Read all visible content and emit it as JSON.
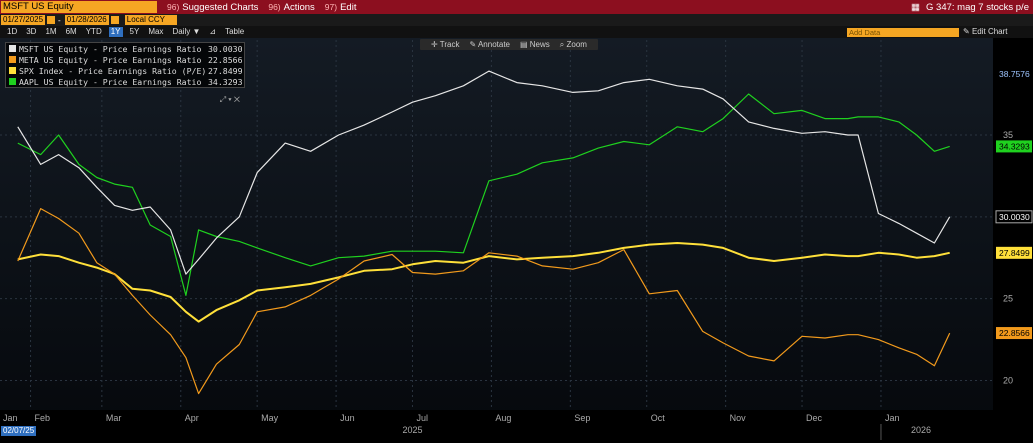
{
  "topbar": {
    "ticker": "MSFT US Equity",
    "menu": [
      {
        "num": "96)",
        "label": "Suggested Charts"
      },
      {
        "num": "96)",
        "label": "Actions"
      },
      {
        "num": "97)",
        "label": "Edit"
      }
    ],
    "right_label": "G 347: mag 7 stocks p/e"
  },
  "date_range": {
    "start": "01/27/2025",
    "end": "01/28/2026",
    "currency": "Local CCY"
  },
  "periods": [
    "1D",
    "3D",
    "1M",
    "6M",
    "YTD",
    "1Y",
    "5Y",
    "Max",
    "Daily ▼",
    "Table"
  ],
  "active_period": "1Y",
  "add_data_placeholder": "Add Data",
  "edit_chart_label": "Edit Chart",
  "tools": [
    "Track",
    "Annotate",
    "News",
    "Zoom"
  ],
  "cursor_date": "02/07/25",
  "colors": {
    "msft": "#e6e6e6",
    "meta": "#f29a1c",
    "spx": "#ffe03a",
    "aapl": "#1fd11f"
  },
  "chart_data": {
    "type": "line",
    "title": "",
    "xlabel": "",
    "ylabel": "",
    "ylim": [
      18.2,
      40.8
    ],
    "y_ticks": [
      20,
      25,
      30,
      35
    ],
    "x_ticks": [
      "Jan",
      "Feb",
      "Mar",
      "Apr",
      "May",
      "Jun",
      "Jul",
      "Aug",
      "Sep",
      "Oct",
      "Nov",
      "Dec",
      "Jan"
    ],
    "x_year_labels": [
      "2025",
      "2026"
    ],
    "x": [
      "2025-01-27",
      "2025-02-05",
      "2025-02-12",
      "2025-02-20",
      "2025-02-27",
      "2025-03-06",
      "2025-03-13",
      "2025-03-20",
      "2025-03-28",
      "2025-04-03",
      "2025-04-08",
      "2025-04-15",
      "2025-04-24",
      "2025-05-01",
      "2025-05-12",
      "2025-05-22",
      "2025-06-02",
      "2025-06-12",
      "2025-06-23",
      "2025-07-01",
      "2025-07-10",
      "2025-07-21",
      "2025-07-31",
      "2025-08-11",
      "2025-08-21",
      "2025-09-02",
      "2025-09-12",
      "2025-09-22",
      "2025-10-02",
      "2025-10-13",
      "2025-10-23",
      "2025-10-31",
      "2025-11-10",
      "2025-11-20",
      "2025-12-01",
      "2025-12-10",
      "2025-12-19",
      "2025-12-23",
      "2025-12-31",
      "2026-01-08",
      "2026-01-15",
      "2026-01-22",
      "2026-01-28"
    ],
    "series": [
      {
        "name": "MSFT US Equity - Price Earnings Ratio (P/E)",
        "key": "msft",
        "last": "30.0030",
        "values": [
          35.5,
          33.2,
          33.8,
          33.0,
          31.8,
          30.7,
          30.4,
          30.6,
          29.2,
          26.5,
          27.4,
          28.7,
          30.0,
          32.7,
          34.5,
          34.0,
          35.0,
          35.6,
          36.4,
          37.0,
          37.4,
          38.0,
          38.9,
          38.2,
          38.0,
          37.6,
          37.7,
          38.2,
          38.4,
          38.0,
          37.8,
          37.2,
          35.8,
          35.4,
          35.1,
          35.2,
          35.0,
          35.0,
          30.2,
          29.6,
          29.0,
          28.4,
          30.0
        ]
      },
      {
        "name": "META US Equity - Price Earnings Ratio (P/E)",
        "key": "meta",
        "last": "22.8566",
        "values": [
          27.3,
          30.5,
          29.9,
          29.0,
          27.2,
          26.5,
          25.2,
          24.0,
          22.8,
          21.4,
          19.2,
          21.0,
          22.2,
          24.2,
          24.5,
          25.2,
          26.2,
          27.3,
          27.7,
          26.6,
          26.5,
          26.7,
          27.8,
          27.6,
          27.0,
          26.8,
          27.2,
          28.0,
          25.3,
          25.5,
          23.0,
          22.3,
          21.5,
          21.2,
          22.7,
          22.6,
          22.8,
          22.8,
          22.5,
          22.0,
          21.6,
          20.9,
          22.9
        ]
      },
      {
        "name": "SPX Index - Price Earnings Ratio (P/E)",
        "key": "spx",
        "last": "27.8499",
        "values": [
          27.4,
          27.7,
          27.6,
          27.2,
          26.9,
          26.5,
          25.6,
          25.5,
          25.1,
          24.2,
          23.6,
          24.3,
          24.9,
          25.5,
          25.7,
          25.9,
          26.3,
          26.7,
          26.8,
          27.1,
          27.3,
          27.2,
          27.6,
          27.4,
          27.5,
          27.6,
          27.8,
          28.1,
          28.3,
          28.4,
          28.3,
          28.1,
          27.5,
          27.3,
          27.5,
          27.7,
          27.6,
          27.6,
          27.8,
          27.7,
          27.5,
          27.6,
          27.8
        ]
      },
      {
        "name": "AAPL US Equity - Price Earnings Ratio (P/E)",
        "key": "aapl",
        "last": "34.3293",
        "values": [
          34.5,
          33.8,
          35.0,
          33.2,
          32.4,
          32.0,
          31.8,
          29.5,
          28.8,
          25.2,
          29.2,
          28.8,
          28.5,
          28.1,
          27.5,
          27.0,
          27.5,
          27.6,
          27.9,
          27.9,
          27.9,
          27.8,
          32.2,
          32.6,
          33.3,
          33.6,
          34.2,
          34.6,
          34.4,
          35.5,
          35.2,
          36.0,
          37.5,
          36.3,
          36.5,
          36.0,
          36.0,
          36.1,
          36.1,
          35.8,
          35.0,
          34.0,
          34.3
        ]
      }
    ],
    "highlight_value": "38.7576",
    "grid": true,
    "legend": "top-left"
  }
}
